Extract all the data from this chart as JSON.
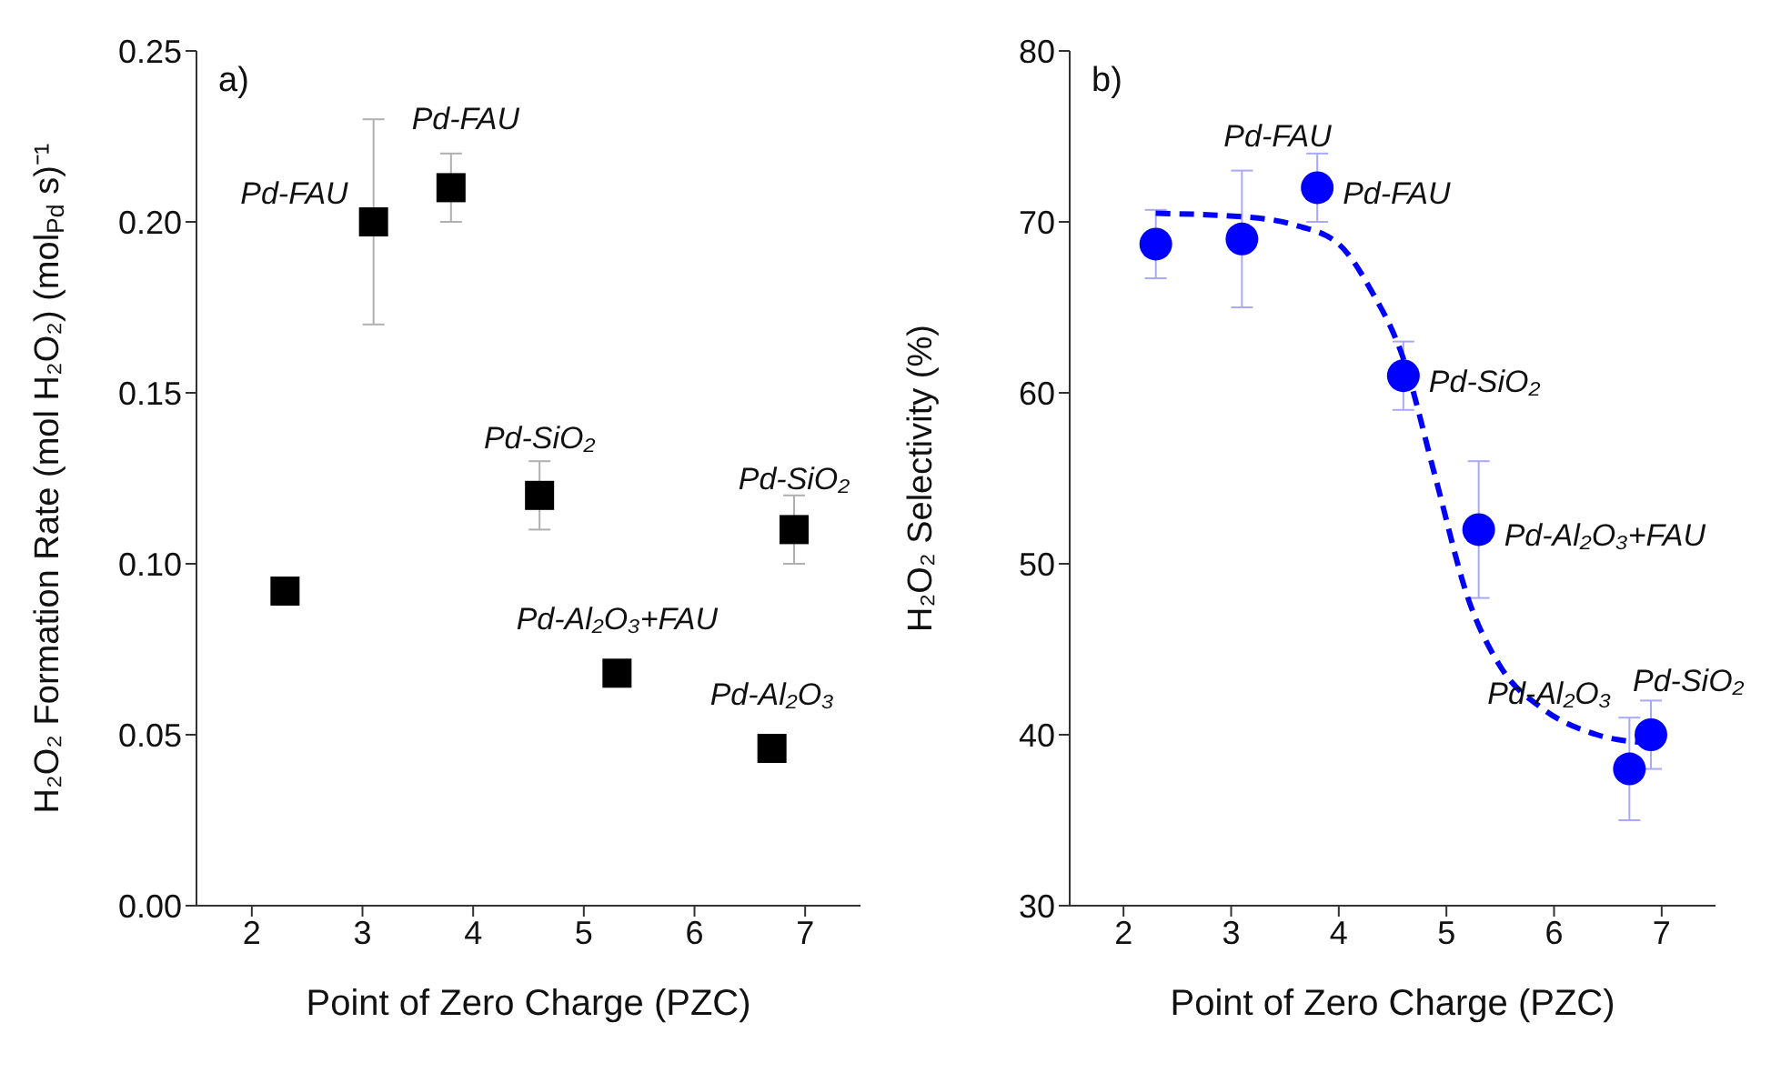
{
  "chart_data": [
    {
      "type": "scatter",
      "xlabel": "Point of Zero Charge (PZC)",
      "ylabel": "H₂O₂ Formation Rate (mol H₂O₂) (mol$_{Pd}$ s)⁻¹",
      "xlim": [
        1.5,
        7.5
      ],
      "xticks": [
        2,
        3,
        4,
        5,
        6,
        7
      ],
      "ylim": [
        0,
        0.25
      ],
      "yticks": [
        {
          "value": 0,
          "label": "0.00"
        },
        {
          "value": 0.05,
          "label": "0.05"
        },
        {
          "value": 0.1,
          "label": "0.10"
        },
        {
          "value": 0.15,
          "label": "0.15"
        },
        {
          "value": 0.2,
          "label": "0.20"
        },
        {
          "value": 0.25,
          "label": "0.25"
        }
      ],
      "marker": "square",
      "grid": false,
      "legend": false,
      "series": [
        {
          "color": "#000000",
          "x": [
            2.3,
            3.1,
            3.8,
            4.6,
            5.3,
            6.7,
            6.9
          ],
          "values": [
            0.092,
            0.2,
            0.21,
            0.12,
            0.068,
            0.046,
            0.11
          ],
          "errors": [
            null,
            0.03,
            0.01,
            0.01,
            null,
            null,
            0.01
          ]
        }
      ],
      "annotations": [
        "a)",
        {
          "text": "Pd-FAU",
          "x": 3.1,
          "y": 0.2
        },
        {
          "text": "Pd-FAU",
          "x": 3.8,
          "y": 0.21
        },
        {
          "text": "Pd-SiO₂",
          "x": 4.6,
          "y": 0.12
        },
        {
          "text": "Pd-Al₂O₃+FAU",
          "x": 5.3,
          "y": 0.068
        },
        {
          "text": "Pd-Al₂O₃",
          "x": 6.7,
          "y": 0.046
        },
        {
          "text": "Pd-SiO₂",
          "x": 6.9,
          "y": 0.11
        }
      ]
    },
    {
      "type": "scatter",
      "xlabel": "Point of Zero Charge (PZC)",
      "ylabel": "H₂O₂ Selectivity (%)",
      "xlim": [
        1.5,
        7.5
      ],
      "xticks": [
        2,
        3,
        4,
        5,
        6,
        7
      ],
      "ylim": [
        30,
        80
      ],
      "yticks": [
        30,
        40,
        50,
        60,
        70,
        80
      ],
      "marker": "circle",
      "grid": false,
      "legend": false,
      "series": [
        {
          "color": "#0000ff",
          "x": [
            2.3,
            3.1,
            3.8,
            4.6,
            5.3,
            6.7,
            6.9
          ],
          "values": [
            68.7,
            69,
            72,
            61,
            52,
            38,
            40
          ],
          "errors": [
            2,
            4,
            2,
            2,
            4,
            3,
            2
          ]
        },
        {
          "type": "line",
          "color": "#0000ff",
          "marker": "none",
          "line_style": "dashed",
          "x": [
            2.3,
            3.1,
            3.6,
            4.0,
            4.3,
            4.6,
            4.9,
            5.2,
            5.5,
            5.9,
            6.4,
            6.9
          ],
          "values": [
            70.5,
            70.3,
            69.8,
            68.7,
            66,
            62,
            55,
            48,
            44,
            41.5,
            40,
            39.5
          ]
        }
      ],
      "annotations": [
        "b)",
        {
          "text": "Pd-FAU",
          "x": 3.1,
          "y": 69
        },
        {
          "text": "Pd-FAU",
          "x": 3.8,
          "y": 72
        },
        {
          "text": "Pd-SiO₂",
          "x": 4.6,
          "y": 61
        },
        {
          "text": "Pd-Al₂O₃+FAU",
          "x": 5.3,
          "y": 52
        },
        {
          "text": "Pd-Al₂O₃",
          "x": 6.7,
          "y": 38
        },
        {
          "text": "Pd-SiO₂",
          "x": 6.9,
          "y": 40
        }
      ]
    }
  ]
}
